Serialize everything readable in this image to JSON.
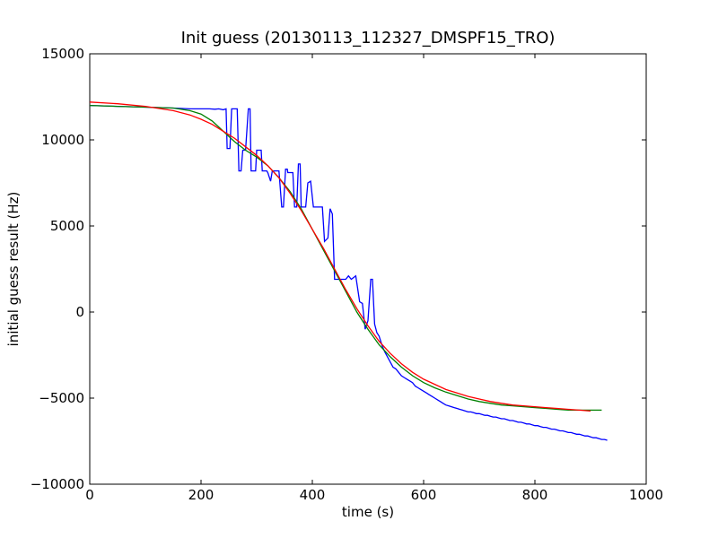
{
  "chart_data": {
    "type": "line",
    "title": "Init guess (20130113_112327_DMSPF15_TRO)",
    "xlabel": "time (s)",
    "ylabel": "initial guess result (Hz)",
    "xlim": [
      0,
      1000
    ],
    "ylim": [
      -10000,
      15000
    ],
    "x_ticks": [
      0,
      200,
      400,
      600,
      800,
      1000
    ],
    "y_ticks": [
      -10000,
      -5000,
      0,
      5000,
      10000,
      15000
    ],
    "x_tick_labels": [
      "0",
      "200",
      "400",
      "600",
      "800",
      "1000"
    ],
    "y_tick_labels": [
      "−10000",
      "−5000",
      "0",
      "5000",
      "10000",
      "15000"
    ],
    "grid": false,
    "legend": "none",
    "series": [
      {
        "color": "#0000ff",
        "points": [
          [
            0,
            12000
          ],
          [
            50,
            11950
          ],
          [
            100,
            11900
          ],
          [
            150,
            11850
          ],
          [
            180,
            11800
          ],
          [
            200,
            11800
          ],
          [
            215,
            11800
          ],
          [
            225,
            11780
          ],
          [
            232,
            11800
          ],
          [
            240,
            11750
          ],
          [
            245,
            11800
          ],
          [
            247,
            9500
          ],
          [
            252,
            9500
          ],
          [
            255,
            11800
          ],
          [
            260,
            11800
          ],
          [
            265,
            11800
          ],
          [
            268,
            8200
          ],
          [
            272,
            8200
          ],
          [
            275,
            9400
          ],
          [
            280,
            9400
          ],
          [
            285,
            11800
          ],
          [
            288,
            11800
          ],
          [
            290,
            8200
          ],
          [
            298,
            8200
          ],
          [
            300,
            9400
          ],
          [
            308,
            9400
          ],
          [
            310,
            8200
          ],
          [
            318,
            8200
          ],
          [
            320,
            8100
          ],
          [
            325,
            7600
          ],
          [
            328,
            8200
          ],
          [
            340,
            8200
          ],
          [
            345,
            6100
          ],
          [
            348,
            6100
          ],
          [
            352,
            8300
          ],
          [
            355,
            8300
          ],
          [
            356,
            8100
          ],
          [
            365,
            8100
          ],
          [
            368,
            6100
          ],
          [
            372,
            6100
          ],
          [
            375,
            8600
          ],
          [
            378,
            8600
          ],
          [
            380,
            6100
          ],
          [
            385,
            6100
          ],
          [
            388,
            6100
          ],
          [
            392,
            7500
          ],
          [
            397,
            7600
          ],
          [
            402,
            6100
          ],
          [
            418,
            6100
          ],
          [
            422,
            4100
          ],
          [
            428,
            4300
          ],
          [
            432,
            6000
          ],
          [
            436,
            5700
          ],
          [
            440,
            1900
          ],
          [
            450,
            1900
          ],
          [
            460,
            1900
          ],
          [
            465,
            2100
          ],
          [
            470,
            1900
          ],
          [
            478,
            2100
          ],
          [
            485,
            600
          ],
          [
            490,
            500
          ],
          [
            495,
            -1000
          ],
          [
            500,
            -500
          ],
          [
            505,
            1900
          ],
          [
            508,
            1900
          ],
          [
            512,
            -700
          ],
          [
            516,
            -1200
          ],
          [
            520,
            -1400
          ],
          [
            522,
            -1600
          ],
          [
            526,
            -2000
          ],
          [
            530,
            -2300
          ],
          [
            535,
            -2600
          ],
          [
            540,
            -2900
          ],
          [
            545,
            -3200
          ],
          [
            550,
            -3300
          ],
          [
            555,
            -3500
          ],
          [
            560,
            -3700
          ],
          [
            565,
            -3800
          ],
          [
            570,
            -3900
          ],
          [
            575,
            -4000
          ],
          [
            580,
            -4100
          ],
          [
            585,
            -4300
          ],
          [
            590,
            -4400
          ],
          [
            595,
            -4500
          ],
          [
            600,
            -4600
          ],
          [
            605,
            -4700
          ],
          [
            610,
            -4800
          ],
          [
            615,
            -4900
          ],
          [
            620,
            -5000
          ],
          [
            625,
            -5100
          ],
          [
            630,
            -5200
          ],
          [
            635,
            -5300
          ],
          [
            640,
            -5400
          ],
          [
            645,
            -5450
          ],
          [
            650,
            -5500
          ],
          [
            655,
            -5550
          ],
          [
            660,
            -5600
          ],
          [
            665,
            -5650
          ],
          [
            670,
            -5700
          ],
          [
            675,
            -5750
          ],
          [
            680,
            -5800
          ],
          [
            685,
            -5800
          ],
          [
            690,
            -5850
          ],
          [
            695,
            -5900
          ],
          [
            700,
            -5900
          ],
          [
            705,
            -5950
          ],
          [
            710,
            -6000
          ],
          [
            715,
            -6000
          ],
          [
            720,
            -6050
          ],
          [
            725,
            -6100
          ],
          [
            730,
            -6100
          ],
          [
            735,
            -6150
          ],
          [
            740,
            -6200
          ],
          [
            745,
            -6200
          ],
          [
            750,
            -6250
          ],
          [
            755,
            -6300
          ],
          [
            760,
            -6300
          ],
          [
            765,
            -6350
          ],
          [
            770,
            -6400
          ],
          [
            775,
            -6400
          ],
          [
            780,
            -6450
          ],
          [
            785,
            -6500
          ],
          [
            790,
            -6500
          ],
          [
            795,
            -6550
          ],
          [
            800,
            -6600
          ],
          [
            805,
            -6600
          ],
          [
            810,
            -6650
          ],
          [
            815,
            -6700
          ],
          [
            820,
            -6700
          ],
          [
            825,
            -6750
          ],
          [
            830,
            -6800
          ],
          [
            835,
            -6800
          ],
          [
            840,
            -6850
          ],
          [
            845,
            -6900
          ],
          [
            850,
            -6900
          ],
          [
            855,
            -6950
          ],
          [
            860,
            -7000
          ],
          [
            865,
            -7000
          ],
          [
            870,
            -7050
          ],
          [
            875,
            -7100
          ],
          [
            880,
            -7100
          ],
          [
            885,
            -7150
          ],
          [
            890,
            -7200
          ],
          [
            895,
            -7200
          ],
          [
            900,
            -7250
          ],
          [
            905,
            -7300
          ],
          [
            910,
            -7300
          ],
          [
            915,
            -7350
          ],
          [
            920,
            -7400
          ],
          [
            925,
            -7400
          ],
          [
            930,
            -7450
          ]
        ]
      },
      {
        "color": "#008000",
        "points": [
          [
            0,
            12000
          ],
          [
            50,
            11950
          ],
          [
            100,
            11900
          ],
          [
            150,
            11850
          ],
          [
            180,
            11700
          ],
          [
            200,
            11500
          ],
          [
            220,
            11100
          ],
          [
            240,
            10500
          ],
          [
            260,
            9900
          ],
          [
            280,
            9400
          ],
          [
            300,
            9000
          ],
          [
            320,
            8500
          ],
          [
            340,
            7800
          ],
          [
            360,
            7000
          ],
          [
            380,
            6000
          ],
          [
            400,
            4800
          ],
          [
            420,
            3600
          ],
          [
            440,
            2400
          ],
          [
            460,
            1200
          ],
          [
            480,
            0
          ],
          [
            500,
            -1000
          ],
          [
            520,
            -1900
          ],
          [
            540,
            -2600
          ],
          [
            560,
            -3200
          ],
          [
            580,
            -3700
          ],
          [
            600,
            -4100
          ],
          [
            620,
            -4400
          ],
          [
            640,
            -4650
          ],
          [
            660,
            -4850
          ],
          [
            680,
            -5050
          ],
          [
            700,
            -5200
          ],
          [
            720,
            -5300
          ],
          [
            740,
            -5400
          ],
          [
            760,
            -5450
          ],
          [
            780,
            -5500
          ],
          [
            800,
            -5550
          ],
          [
            820,
            -5600
          ],
          [
            840,
            -5650
          ],
          [
            860,
            -5700
          ],
          [
            880,
            -5700
          ],
          [
            900,
            -5700
          ],
          [
            920,
            -5700
          ]
        ]
      },
      {
        "color": "#ff0000",
        "points": [
          [
            0,
            12200
          ],
          [
            50,
            12100
          ],
          [
            100,
            11950
          ],
          [
            150,
            11700
          ],
          [
            180,
            11450
          ],
          [
            200,
            11200
          ],
          [
            220,
            10900
          ],
          [
            240,
            10500
          ],
          [
            260,
            10100
          ],
          [
            280,
            9600
          ],
          [
            300,
            9100
          ],
          [
            320,
            8500
          ],
          [
            340,
            7800
          ],
          [
            360,
            6900
          ],
          [
            380,
            5900
          ],
          [
            400,
            4800
          ],
          [
            420,
            3700
          ],
          [
            440,
            2500
          ],
          [
            460,
            1300
          ],
          [
            480,
            200
          ],
          [
            500,
            -800
          ],
          [
            520,
            -1700
          ],
          [
            540,
            -2400
          ],
          [
            560,
            -3000
          ],
          [
            580,
            -3500
          ],
          [
            600,
            -3900
          ],
          [
            620,
            -4200
          ],
          [
            640,
            -4500
          ],
          [
            660,
            -4700
          ],
          [
            680,
            -4900
          ],
          [
            700,
            -5050
          ],
          [
            720,
            -5200
          ],
          [
            740,
            -5300
          ],
          [
            760,
            -5400
          ],
          [
            780,
            -5450
          ],
          [
            800,
            -5500
          ],
          [
            820,
            -5550
          ],
          [
            840,
            -5600
          ],
          [
            860,
            -5650
          ],
          [
            880,
            -5700
          ],
          [
            900,
            -5750
          ]
        ]
      }
    ]
  }
}
